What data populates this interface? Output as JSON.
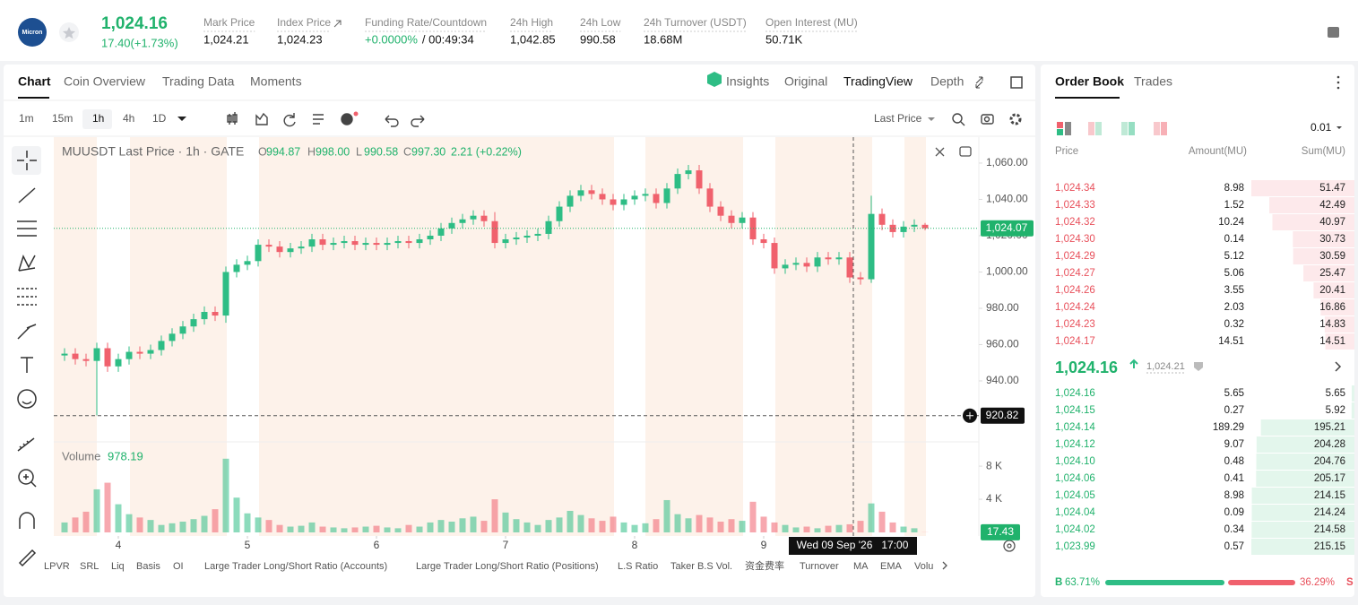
{
  "header": {
    "logo": "Micron",
    "last_price": "1,024.16",
    "change": "17.40(+1.73%)",
    "stats": [
      {
        "label": "Mark Price",
        "value": "1,024.21"
      },
      {
        "label": "Index Price",
        "value": "1,024.23"
      },
      {
        "label": "Funding Rate/Countdown",
        "value": "+0.0000%",
        "extra": "/ 00:49:34"
      },
      {
        "label": "24h High",
        "value": "1,042.85"
      },
      {
        "label": "24h Low",
        "value": "990.58"
      },
      {
        "label": "24h Turnover (USDT)",
        "value": "18.68M"
      },
      {
        "label": "Open Interest (MU)",
        "value": "50.71K"
      }
    ]
  },
  "chart_tabs": [
    "Chart",
    "Coin Overview",
    "Trading Data",
    "Moments"
  ],
  "view_tabs": [
    "Insights",
    "Original",
    "TradingView",
    "Depth"
  ],
  "intervals": [
    "1m",
    "15m",
    "1h",
    "4h",
    "1D"
  ],
  "price_type": "Last Price",
  "chart_data": {
    "type": "candlestick",
    "title": "MUUSDT Last Price · 1h · GATE",
    "ohlc_legend": [
      {
        "key": "O",
        "value": "994.87"
      },
      {
        "key": "H",
        "value": "998.00"
      },
      {
        "key": "L",
        "value": "990.58"
      },
      {
        "key": "C",
        "value": "997.30"
      }
    ],
    "legend_change": "2.21 (+0.22%)",
    "up_color": "#2ebd85",
    "down_color": "#f0616d",
    "open": [
      954,
      955,
      952,
      951,
      958,
      948,
      952,
      956,
      955,
      957,
      962,
      966,
      970,
      974,
      978,
      976,
      1000,
      1004,
      1006,
      1015,
      1014,
      1011,
      1013,
      1014,
      1018,
      1015,
      1016,
      1017,
      1015,
      1016,
      1015,
      1016,
      1017,
      1016,
      1018,
      1020,
      1024,
      1027,
      1029,
      1031,
      1028,
      1016,
      1018,
      1019,
      1020,
      1021,
      1028,
      1036,
      1042,
      1045,
      1043,
      1040,
      1037,
      1040,
      1042,
      1043,
      1038,
      1046,
      1054,
      1056,
      1046,
      1036,
      1031,
      1027,
      1030,
      1018,
      1016,
      1002,
      1004,
      1005,
      1003,
      1008,
      1007,
      1008,
      997,
      996,
      1032,
      1026,
      1022,
      1025,
      1026
    ],
    "high": [
      958,
      958,
      955,
      961,
      961,
      955,
      959,
      959,
      960,
      965,
      969,
      973,
      977,
      981,
      981,
      1003,
      1007,
      1009,
      1018,
      1018,
      1017,
      1016,
      1017,
      1021,
      1021,
      1019,
      1020,
      1020,
      1019,
      1019,
      1019,
      1020,
      1020,
      1021,
      1023,
      1027,
      1030,
      1032,
      1034,
      1034,
      1033,
      1021,
      1022,
      1023,
      1024,
      1031,
      1039,
      1045,
      1048,
      1048,
      1046,
      1043,
      1043,
      1045,
      1046,
      1046,
      1049,
      1057,
      1059,
      1059,
      1049,
      1039,
      1034,
      1033,
      1033,
      1021,
      1019,
      1007,
      1008,
      1008,
      1011,
      1011,
      1011,
      1011,
      1000,
      1042,
      1035,
      1029,
      1028,
      1029,
      1027
    ],
    "low": [
      951,
      949,
      948,
      921,
      945,
      945,
      949,
      952,
      952,
      954,
      959,
      963,
      967,
      971,
      973,
      972,
      997,
      1001,
      1003,
      1011,
      1008,
      1008,
      1010,
      1011,
      1012,
      1012,
      1013,
      1012,
      1012,
      1012,
      1012,
      1013,
      1013,
      1013,
      1015,
      1017,
      1021,
      1024,
      1026,
      1025,
      1013,
      1013,
      1015,
      1016,
      1017,
      1018,
      1025,
      1033,
      1039,
      1040,
      1037,
      1034,
      1034,
      1037,
      1039,
      1035,
      1035,
      1043,
      1051,
      1043,
      1033,
      1028,
      1024,
      1024,
      1015,
      1013,
      999,
      999,
      1001,
      1000,
      1000,
      1004,
      1004,
      994,
      993,
      994,
      1023,
      1019,
      1019,
      1022,
      1023
    ],
    "close": [
      955,
      952,
      951,
      958,
      948,
      952,
      956,
      955,
      957,
      962,
      966,
      970,
      974,
      978,
      976,
      1000,
      1004,
      1006,
      1015,
      1014,
      1011,
      1013,
      1014,
      1018,
      1015,
      1016,
      1017,
      1015,
      1016,
      1015,
      1016,
      1017,
      1016,
      1018,
      1020,
      1024,
      1027,
      1029,
      1031,
      1028,
      1016,
      1018,
      1019,
      1020,
      1021,
      1028,
      1036,
      1042,
      1045,
      1043,
      1040,
      1037,
      1040,
      1042,
      1043,
      1038,
      1046,
      1054,
      1056,
      1046,
      1036,
      1031,
      1027,
      1030,
      1018,
      1016,
      1002,
      1004,
      1005,
      1003,
      1008,
      1007,
      1008,
      997,
      996,
      1032,
      1026,
      1022,
      1025,
      1026,
      1024.07
    ],
    "last_price_label": "1,024.07",
    "volume_title": "Volume",
    "volume": [
      1200,
      1800,
      2500,
      5200,
      6000,
      3400,
      2200,
      1800,
      1500,
      900,
      1100,
      1300,
      1600,
      2000,
      2800,
      8900,
      4200,
      2300,
      1800,
      1500,
      900,
      700,
      800,
      1200,
      700,
      600,
      500,
      600,
      700,
      800,
      600,
      500,
      900,
      700,
      1200,
      1500,
      1300,
      1700,
      1900,
      1400,
      4000,
      2400,
      1600,
      1200,
      900,
      1500,
      1800,
      2600,
      2100,
      1700,
      1400,
      1900,
      1200,
      900,
      1100,
      1600,
      3900,
      2200,
      1700,
      2100,
      1800,
      1300,
      1600,
      1400,
      3700,
      1900,
      1200,
      900,
      600,
      700,
      500,
      800,
      900,
      978.19,
      1400,
      3500,
      2500,
      1200,
      700,
      500,
      17.43
    ],
    "xlim": [
      -1,
      85
    ],
    "xticks": [
      {
        "value": 5,
        "label": "4"
      },
      {
        "value": 17,
        "label": "5"
      },
      {
        "value": 29,
        "label": "6"
      },
      {
        "value": 41,
        "label": "7"
      },
      {
        "value": 53,
        "label": "8"
      },
      {
        "value": 65,
        "label": "9"
      }
    ],
    "ylim": [
      906.4,
      1074.3
    ],
    "yticks": [
      {
        "value": 940,
        "label": "940.00"
      },
      {
        "value": 960,
        "label": "960.00"
      },
      {
        "value": 980,
        "label": "980.00"
      },
      {
        "value": 1000,
        "label": "1,000.00"
      },
      {
        "value": 1020,
        "label": "1,020.00"
      },
      {
        "value": 1040,
        "label": "1,040.00"
      },
      {
        "value": 1060,
        "label": "1,060.00"
      }
    ],
    "volume_lim": [
      0,
      10500
    ],
    "volume_ticks": [
      {
        "value": 4000,
        "label": "4 K"
      },
      {
        "value": 8000,
        "label": "8 K"
      }
    ],
    "crosshair_price": 920.82,
    "crosshair_time": "Wed 09 Sep '26   17:00"
  },
  "indicators": [
    "LPVR",
    "SRL",
    "Liq",
    "Basis",
    "OI",
    "Large Trader Long/Short Ratio (Accounts)",
    "Large Trader Long/Short Ratio (Positions)",
    "L.S Ratio",
    "Taker B.S Vol.",
    "资金费率",
    "Turnover",
    "MA",
    "EMA",
    "Volu"
  ],
  "order_book": {
    "tabs": [
      "Order Book",
      "Trades"
    ],
    "precision": "0.01",
    "columns": [
      "Price",
      "Amount(MU)",
      "Sum(MU)"
    ],
    "asks": {
      "prices": [
        "1,024.34",
        "1,024.33",
        "1,024.32",
        "1,024.30",
        "1,024.29",
        "1,024.27",
        "1,024.26",
        "1,024.24",
        "1,024.23",
        "1,024.17"
      ],
      "amounts": [
        8.98,
        1.52,
        10.24,
        0.14,
        5.12,
        5.06,
        3.55,
        2.03,
        0.32,
        14.51
      ],
      "sums": [
        51.47,
        42.49,
        40.97,
        30.73,
        30.59,
        25.47,
        20.41,
        16.86,
        14.83,
        14.51
      ]
    },
    "mid_price": "1,024.16",
    "mark_price": "1,024.21",
    "bids": {
      "prices": [
        "1,024.16",
        "1,024.15",
        "1,024.14",
        "1,024.12",
        "1,024.10",
        "1,024.06",
        "1,024.05",
        "1,024.04",
        "1,024.02",
        "1,023.99"
      ],
      "amounts": [
        5.65,
        0.27,
        189.29,
        9.07,
        0.48,
        0.41,
        8.98,
        0.09,
        0.34,
        0.57
      ],
      "sums": [
        5.65,
        5.92,
        195.21,
        204.28,
        204.76,
        205.17,
        214.15,
        214.24,
        214.58,
        215.15
      ]
    },
    "long_short": {
      "letters": [
        "B",
        "S"
      ],
      "values": [
        63.71,
        36.29
      ],
      "value_labels": [
        "63.71%",
        "36.29%"
      ]
    }
  }
}
